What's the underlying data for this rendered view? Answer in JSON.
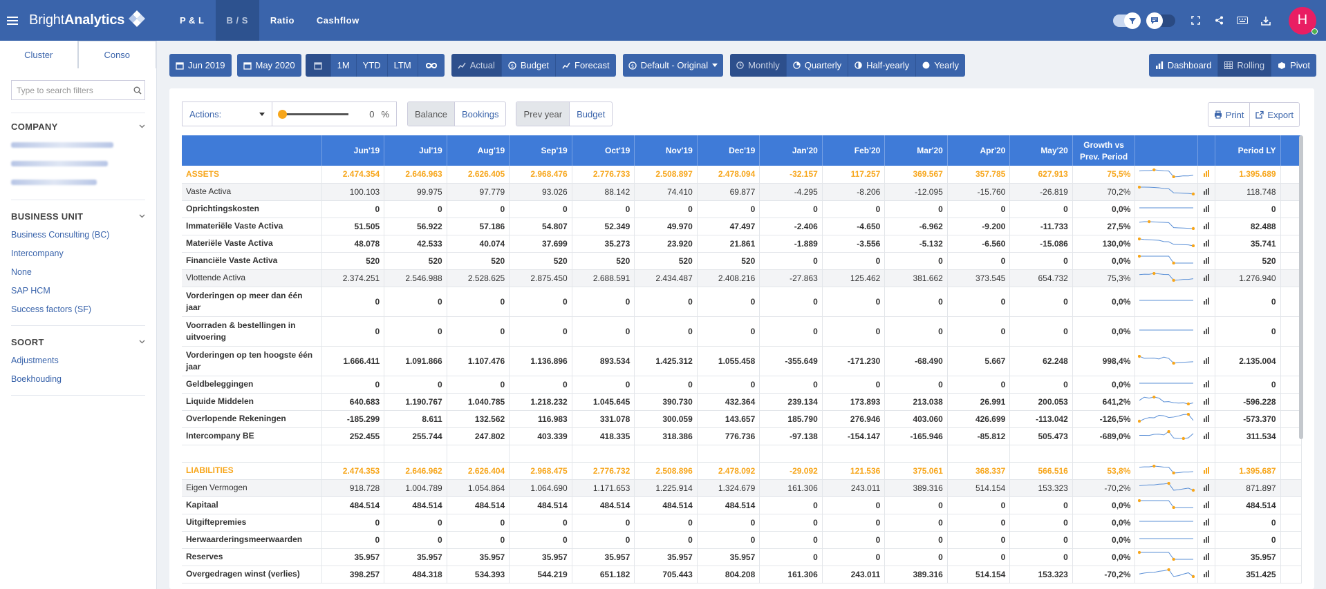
{
  "brand": {
    "name_light": "Bright",
    "name_bold": "Analytics"
  },
  "nav": [
    {
      "label": "P & L",
      "active": false
    },
    {
      "label": "B / S",
      "active": true
    },
    {
      "label": "Ratio",
      "active": false
    },
    {
      "label": "Cashflow",
      "active": false
    }
  ],
  "user": {
    "initial": "H"
  },
  "sidebar": {
    "tabs": [
      "Cluster",
      "Conso"
    ],
    "search_placeholder": "Type to search filters",
    "sections": [
      {
        "title": "COMPANY",
        "items": []
      },
      {
        "title": "BUSINESS UNIT",
        "items": [
          "Business Consulting (BC)",
          "Intercompany",
          "None",
          "SAP HCM",
          "Success factors (SF)"
        ]
      },
      {
        "title": "SOORT",
        "items": [
          "Adjustments",
          "Boekhouding"
        ]
      }
    ]
  },
  "toolbar": {
    "date_from": "Jun 2019",
    "date_to": "May 2020",
    "range": [
      "1M",
      "YTD",
      "LTM"
    ],
    "scenario": [
      "Actual",
      "Budget",
      "Forecast"
    ],
    "version": "Default - Original",
    "period": [
      "Monthly",
      "Quarterly",
      "Half-yearly",
      "Yearly"
    ],
    "views": [
      "Dashboard",
      "Rolling",
      "Pivot"
    ]
  },
  "controls": {
    "actions_label": "Actions:",
    "slider_value": "0",
    "slider_unit": "%",
    "mode": [
      "Balance",
      "Bookings"
    ],
    "compare": [
      "Prev year",
      "Budget"
    ],
    "print": "Print",
    "export": "Export"
  },
  "table": {
    "columns": [
      "Jun'19",
      "Jul'19",
      "Aug'19",
      "Sep'19",
      "Oct'19",
      "Nov'19",
      "Dec'19",
      "Jan'20",
      "Feb'20",
      "Mar'20",
      "Apr'20",
      "May'20"
    ],
    "growth_header": "Growth vs Prev. Period",
    "period_ly_header": "Period LY",
    "colors": {
      "header_bg": "#3f7bd8",
      "accent": "#f7a61b",
      "nav": "#3a64ab",
      "spark": "#5a8fd6"
    },
    "rows": [
      {
        "label": "ASSETS",
        "kind": "hdr",
        "values": [
          "2.474.354",
          "2.646.963",
          "2.626.405",
          "2.968.476",
          "2.776.733",
          "2.508.897",
          "2.478.094",
          "-32.157",
          "117.257",
          "369.567",
          "357.785",
          "627.913"
        ],
        "growth": "75,5%",
        "ly": "1.395.689"
      },
      {
        "label": "Vaste Activa",
        "kind": "sub",
        "values": [
          "100.103",
          "99.975",
          "97.779",
          "93.026",
          "88.142",
          "74.410",
          "69.877",
          "-4.295",
          "-8.206",
          "-12.095",
          "-15.760",
          "-26.819"
        ],
        "growth": "70,2%",
        "ly": "118.748"
      },
      {
        "label": "Oprichtingskosten",
        "kind": "bold",
        "values": [
          "0",
          "0",
          "0",
          "0",
          "0",
          "0",
          "0",
          "0",
          "0",
          "0",
          "0",
          "0"
        ],
        "growth": "0,0%",
        "ly": "0"
      },
      {
        "label": "Immateriële Vaste Activa",
        "kind": "bold",
        "values": [
          "51.505",
          "56.922",
          "57.186",
          "54.807",
          "52.349",
          "49.970",
          "47.497",
          "-2.406",
          "-4.650",
          "-6.962",
          "-9.200",
          "-11.733"
        ],
        "growth": "27,5%",
        "ly": "82.488"
      },
      {
        "label": "Materiële Vaste Activa",
        "kind": "bold",
        "values": [
          "48.078",
          "42.533",
          "40.074",
          "37.699",
          "35.273",
          "23.920",
          "21.861",
          "-1.889",
          "-3.556",
          "-5.132",
          "-6.560",
          "-15.086"
        ],
        "growth": "130,0%",
        "ly": "35.741"
      },
      {
        "label": "Financiële Vaste Activa",
        "kind": "bold",
        "values": [
          "520",
          "520",
          "520",
          "520",
          "520",
          "520",
          "520",
          "0",
          "0",
          "0",
          "0",
          "0"
        ],
        "growth": "0,0%",
        "ly": "520"
      },
      {
        "label": "Vlottende Activa",
        "kind": "sub",
        "values": [
          "2.374.251",
          "2.546.988",
          "2.528.625",
          "2.875.450",
          "2.688.591",
          "2.434.487",
          "2.408.216",
          "-27.863",
          "125.462",
          "381.662",
          "373.545",
          "654.732"
        ],
        "growth": "75,3%",
        "ly": "1.276.940"
      },
      {
        "label": "Vorderingen op meer dan één jaar",
        "kind": "bold",
        "tall": true,
        "values": [
          "0",
          "0",
          "0",
          "0",
          "0",
          "0",
          "0",
          "0",
          "0",
          "0",
          "0",
          "0"
        ],
        "growth": "0,0%",
        "ly": "0"
      },
      {
        "label": "Voorraden & bestellingen in uitvoering",
        "kind": "bold",
        "tall": true,
        "values": [
          "0",
          "0",
          "0",
          "0",
          "0",
          "0",
          "0",
          "0",
          "0",
          "0",
          "0",
          "0"
        ],
        "growth": "0,0%",
        "ly": "0"
      },
      {
        "label": "Vorderingen op ten hoogste één jaar",
        "kind": "bold",
        "tall": true,
        "values": [
          "1.666.411",
          "1.091.866",
          "1.107.476",
          "1.136.896",
          "893.534",
          "1.425.312",
          "1.055.458",
          "-355.649",
          "-171.230",
          "-68.490",
          "5.667",
          "62.248"
        ],
        "growth": "998,4%",
        "ly": "2.135.004"
      },
      {
        "label": "Geldbeleggingen",
        "kind": "bold",
        "values": [
          "0",
          "0",
          "0",
          "0",
          "0",
          "0",
          "0",
          "0",
          "0",
          "0",
          "0",
          "0"
        ],
        "growth": "0,0%",
        "ly": "0"
      },
      {
        "label": "Liquide Middelen",
        "kind": "bold",
        "values": [
          "640.683",
          "1.190.767",
          "1.040.785",
          "1.218.232",
          "1.045.645",
          "390.730",
          "432.364",
          "239.134",
          "173.893",
          "213.038",
          "26.991",
          "200.053"
        ],
        "growth": "641,2%",
        "ly": "-596.228"
      },
      {
        "label": "Overlopende Rekeningen",
        "kind": "bold",
        "values": [
          "-185.299",
          "8.611",
          "132.562",
          "116.983",
          "331.078",
          "300.059",
          "143.657",
          "185.790",
          "276.946",
          "403.060",
          "426.699",
          "-113.042"
        ],
        "growth": "-126,5%",
        "ly": "-573.370"
      },
      {
        "label": "Intercompany BE",
        "kind": "bold",
        "values": [
          "252.455",
          "255.744",
          "247.802",
          "403.339",
          "418.335",
          "318.386",
          "776.736",
          "-97.138",
          "-154.147",
          "-165.946",
          "-85.812",
          "505.473"
        ],
        "growth": "-689,0%",
        "ly": "311.534"
      },
      {
        "label": "",
        "kind": "empty",
        "values": [
          "",
          "",
          "",
          "",
          "",
          "",
          "",
          "",
          "",
          "",
          "",
          ""
        ],
        "growth": "",
        "ly": ""
      },
      {
        "label": "LIABILITIES",
        "kind": "hdr",
        "values": [
          "2.474.353",
          "2.646.962",
          "2.626.404",
          "2.968.475",
          "2.776.732",
          "2.508.896",
          "2.478.092",
          "-29.092",
          "121.536",
          "375.061",
          "368.337",
          "566.516"
        ],
        "growth": "53,8%",
        "ly": "1.395.687"
      },
      {
        "label": "Eigen Vermogen",
        "kind": "sub",
        "values": [
          "918.728",
          "1.004.789",
          "1.054.864",
          "1.064.690",
          "1.171.653",
          "1.225.914",
          "1.324.679",
          "161.306",
          "243.011",
          "389.316",
          "514.154",
          "153.323"
        ],
        "growth": "-70,2%",
        "ly": "871.897"
      },
      {
        "label": "Kapitaal",
        "kind": "bold",
        "values": [
          "484.514",
          "484.514",
          "484.514",
          "484.514",
          "484.514",
          "484.514",
          "484.514",
          "0",
          "0",
          "0",
          "0",
          "0"
        ],
        "growth": "0,0%",
        "ly": "484.514"
      },
      {
        "label": "Uitgiftepremies",
        "kind": "bold",
        "values": [
          "0",
          "0",
          "0",
          "0",
          "0",
          "0",
          "0",
          "0",
          "0",
          "0",
          "0",
          "0"
        ],
        "growth": "0,0%",
        "ly": "0"
      },
      {
        "label": "Herwaarderingsmeerwaarden",
        "kind": "bold",
        "values": [
          "0",
          "0",
          "0",
          "0",
          "0",
          "0",
          "0",
          "0",
          "0",
          "0",
          "0",
          "0"
        ],
        "growth": "0,0%",
        "ly": "0"
      },
      {
        "label": "Reserves",
        "kind": "bold",
        "values": [
          "35.957",
          "35.957",
          "35.957",
          "35.957",
          "35.957",
          "35.957",
          "35.957",
          "0",
          "0",
          "0",
          "0",
          "0"
        ],
        "growth": "0,0%",
        "ly": "35.957"
      },
      {
        "label": "Overgedragen winst (verlies)",
        "kind": "bold",
        "values": [
          "398.257",
          "484.318",
          "534.393",
          "544.219",
          "651.182",
          "705.443",
          "804.208",
          "161.306",
          "243.011",
          "389.316",
          "514.154",
          "153.323"
        ],
        "growth": "-70,2%",
        "ly": "351.425"
      }
    ]
  }
}
